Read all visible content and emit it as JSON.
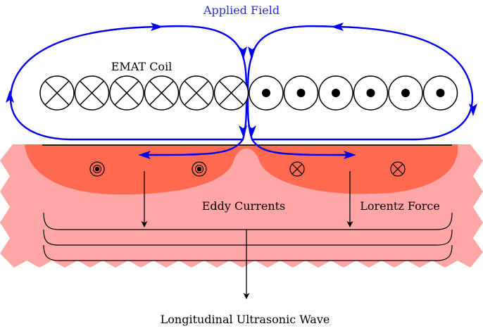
{
  "labels": {
    "applied_field": "Applied Field",
    "emat_coil": "EMAT Coil",
    "eddy_currents": "Eddy Currents",
    "lorentz_force": "Lorentz Force",
    "wave": "Longitudinal Ultrasonic Wave"
  },
  "coil": {
    "into_page_count": 6,
    "out_of_page_count": 6,
    "into_page_symbol": "cross",
    "out_of_page_symbol": "dot"
  },
  "eddy_markers": [
    "dot",
    "dot",
    "cross",
    "cross"
  ],
  "colors": {
    "field_line": "#0000ee",
    "specimen": "#ffa6a6",
    "eddy_region": "#ff6a50",
    "applied_field_text": "#2a2ad6",
    "ink": "#000000"
  }
}
